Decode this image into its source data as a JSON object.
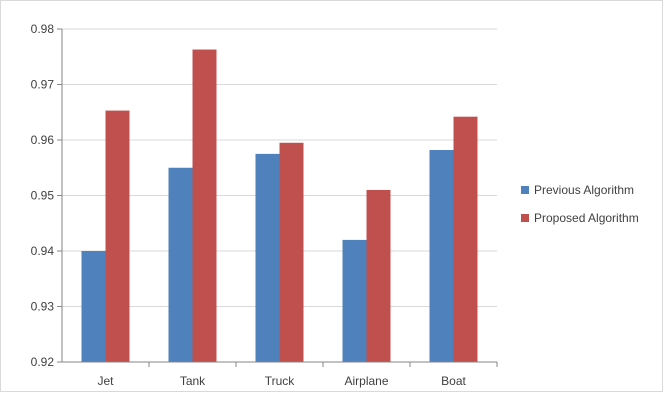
{
  "chart_data": {
    "type": "bar",
    "categories": [
      "Jet",
      "Tank",
      "Truck",
      "Airplane",
      "Boat"
    ],
    "series": [
      {
        "name": "Previous Algorithm",
        "values": [
          0.94,
          0.955,
          0.9575,
          0.942,
          0.9582
        ],
        "color": "#4f81bd"
      },
      {
        "name": "Proposed Algorithm",
        "values": [
          0.9653,
          0.9763,
          0.9595,
          0.951,
          0.9642
        ],
        "color": "#c0504d"
      }
    ],
    "title": "",
    "xlabel": "",
    "ylabel": "",
    "ylim": [
      0.92,
      0.98
    ],
    "yticks": [
      "0.92",
      "0.93",
      "0.94",
      "0.95",
      "0.96",
      "0.97",
      "0.98"
    ],
    "grid": true,
    "legend_position": "right"
  }
}
